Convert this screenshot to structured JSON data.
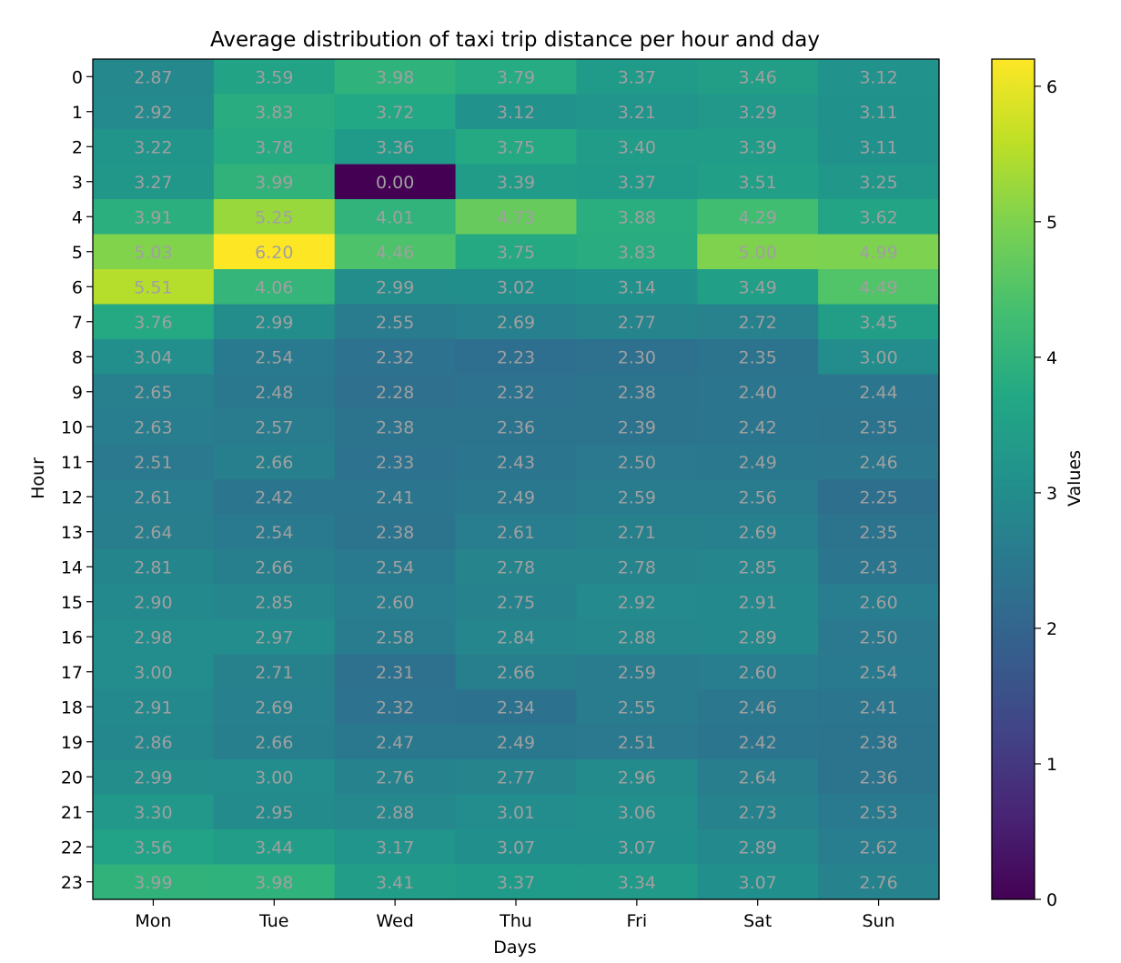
{
  "chart_data": {
    "type": "heatmap",
    "title": "Average distribution of taxi trip distance per hour and day",
    "xlabel": "Days",
    "ylabel": "Hour",
    "x": [
      "Mon",
      "Tue",
      "Wed",
      "Thu",
      "Fri",
      "Sat",
      "Sun"
    ],
    "y": [
      "0",
      "1",
      "2",
      "3",
      "4",
      "5",
      "6",
      "7",
      "8",
      "9",
      "10",
      "11",
      "12",
      "13",
      "14",
      "15",
      "16",
      "17",
      "18",
      "19",
      "20",
      "21",
      "22",
      "23"
    ],
    "values": [
      [
        2.87,
        3.59,
        3.98,
        3.79,
        3.37,
        3.46,
        3.12
      ],
      [
        2.92,
        3.83,
        3.72,
        3.12,
        3.21,
        3.29,
        3.11
      ],
      [
        3.22,
        3.78,
        3.36,
        3.75,
        3.4,
        3.39,
        3.11
      ],
      [
        3.27,
        3.99,
        0.0,
        3.39,
        3.37,
        3.51,
        3.25
      ],
      [
        3.91,
        5.25,
        4.01,
        4.73,
        3.88,
        4.29,
        3.62
      ],
      [
        5.03,
        6.2,
        4.46,
        3.75,
        3.83,
        5.0,
        4.99
      ],
      [
        5.51,
        4.06,
        2.99,
        3.02,
        3.14,
        3.49,
        4.49
      ],
      [
        3.76,
        2.99,
        2.55,
        2.69,
        2.77,
        2.72,
        3.45
      ],
      [
        3.04,
        2.54,
        2.32,
        2.23,
        2.3,
        2.35,
        3.0
      ],
      [
        2.65,
        2.48,
        2.28,
        2.32,
        2.38,
        2.4,
        2.44
      ],
      [
        2.63,
        2.57,
        2.38,
        2.36,
        2.39,
        2.42,
        2.35
      ],
      [
        2.51,
        2.66,
        2.33,
        2.43,
        2.5,
        2.49,
        2.46
      ],
      [
        2.61,
        2.42,
        2.41,
        2.49,
        2.59,
        2.56,
        2.25
      ],
      [
        2.64,
        2.54,
        2.38,
        2.61,
        2.71,
        2.69,
        2.35
      ],
      [
        2.81,
        2.66,
        2.54,
        2.78,
        2.78,
        2.85,
        2.43
      ],
      [
        2.9,
        2.85,
        2.6,
        2.75,
        2.92,
        2.91,
        2.6
      ],
      [
        2.98,
        2.97,
        2.58,
        2.84,
        2.88,
        2.89,
        2.5
      ],
      [
        3.0,
        2.71,
        2.31,
        2.66,
        2.59,
        2.6,
        2.54
      ],
      [
        2.91,
        2.69,
        2.32,
        2.34,
        2.55,
        2.46,
        2.41
      ],
      [
        2.86,
        2.66,
        2.47,
        2.49,
        2.51,
        2.42,
        2.38
      ],
      [
        2.99,
        3.0,
        2.76,
        2.77,
        2.96,
        2.64,
        2.36
      ],
      [
        3.3,
        2.95,
        2.88,
        3.01,
        3.06,
        2.73,
        2.53
      ],
      [
        3.56,
        3.44,
        3.17,
        3.07,
        3.07,
        2.89,
        2.62
      ],
      [
        3.99,
        3.98,
        3.41,
        3.37,
        3.34,
        3.07,
        2.76
      ]
    ],
    "colorscale": "viridis",
    "vmin": 0,
    "vmax": 6.2,
    "colorbar": {
      "label": "Values",
      "ticks": [
        0,
        1,
        2,
        3,
        4,
        5,
        6
      ]
    },
    "annotation_color": "#a0a0a0",
    "grid": false
  }
}
